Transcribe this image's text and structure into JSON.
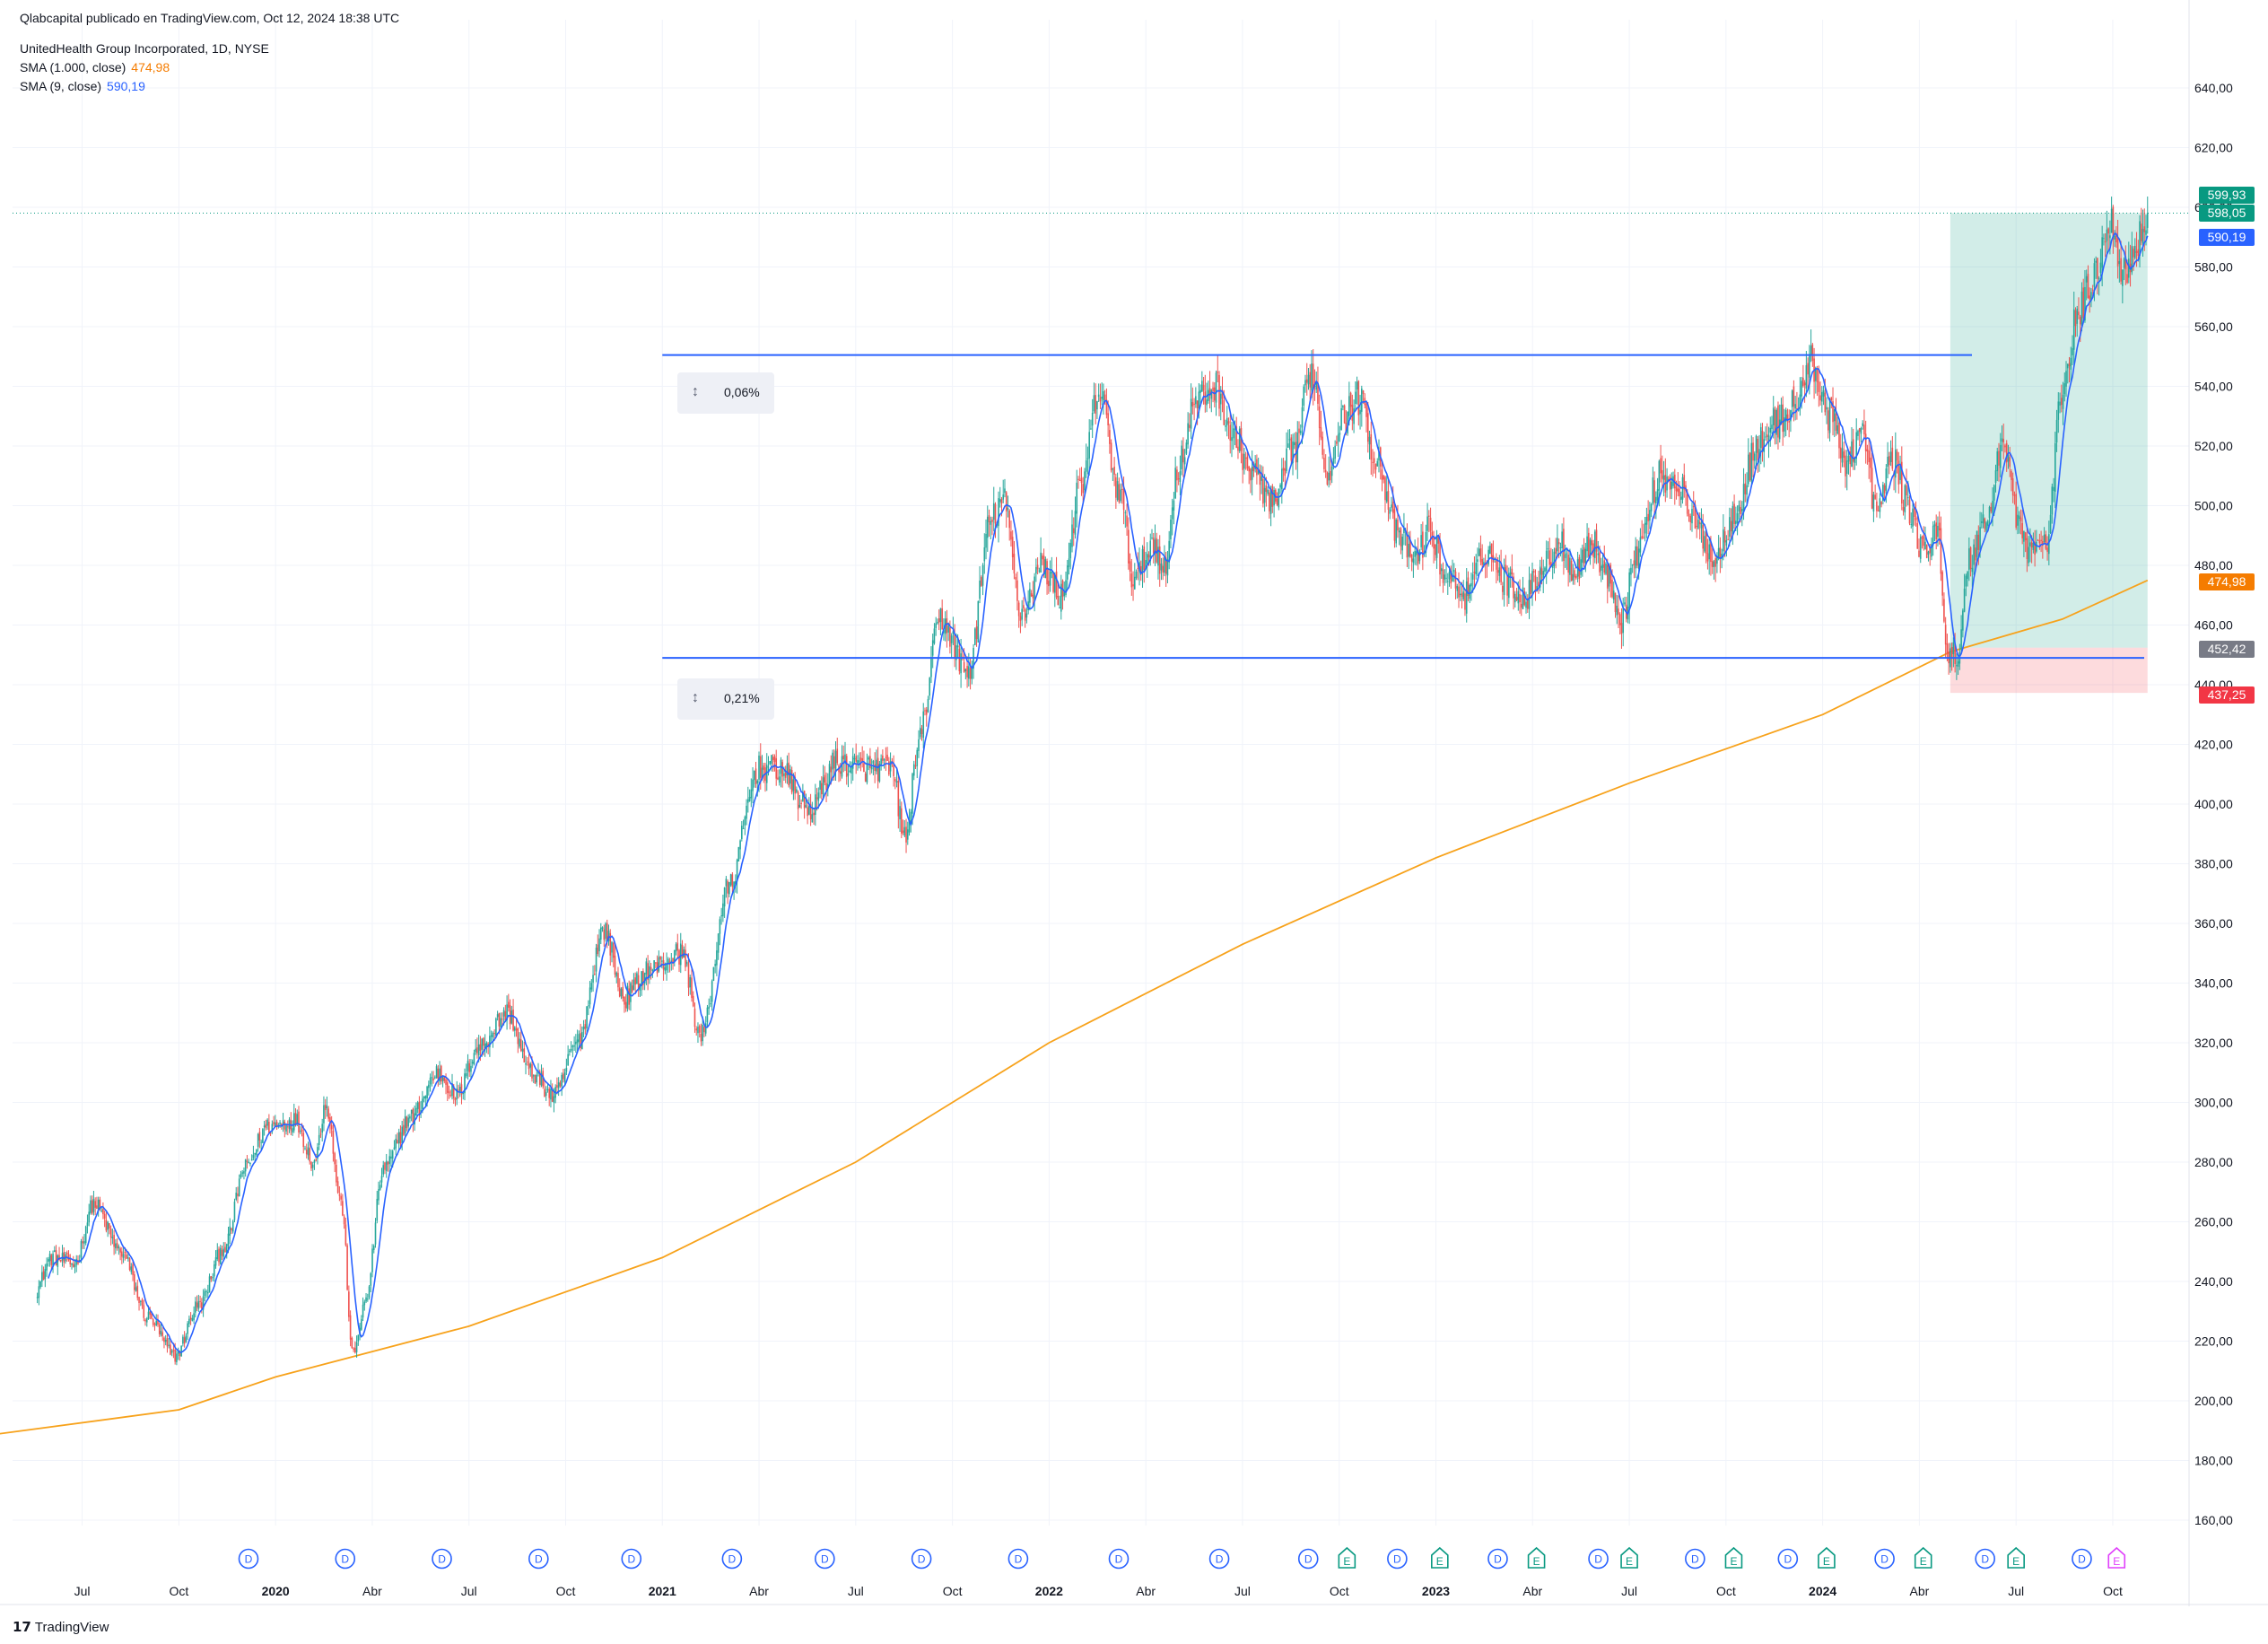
{
  "header": {
    "published": "Qlabcapital publicado en TradingView.com, Oct 12, 2024 18:38 UTC",
    "symbol": "UnitedHealth Group Incorporated, 1D, NYSE",
    "sma_long_label": "SMA (1.000, close)",
    "sma_long_value": "474,98",
    "sma_short_label": "SMA (9, close)",
    "sma_short_value": "590,19"
  },
  "footer": {
    "brand": "TradingView",
    "logo_text": "17"
  },
  "measures": [
    {
      "label": "0,06%"
    },
    {
      "label": "0,21%"
    }
  ],
  "price_tags": [
    {
      "label": "599,93",
      "price": 599.93,
      "color": "#089981"
    },
    {
      "label": "598,05",
      "price": 598.05,
      "color": "#089981"
    },
    {
      "label": "590,19",
      "price": 590.19,
      "color": "#2962ff"
    },
    {
      "label": "474,98",
      "price": 474.98,
      "color": "#f57c00"
    },
    {
      "label": "452,42",
      "price": 452.42,
      "color": "#787b86"
    },
    {
      "label": "437,25",
      "price": 437.25,
      "color": "#f23645"
    }
  ],
  "chart_data": {
    "type": "candlestick",
    "title": "UnitedHealth Group Incorporated, 1D, NYSE",
    "ylim": [
      150,
      650
    ],
    "y_ticks": [
      "640,00",
      "620,00",
      "600,00",
      "580,00",
      "560,00",
      "540,00",
      "520,00",
      "500,00",
      "480,00",
      "460,00",
      "440,00",
      "420,00",
      "400,00",
      "380,00",
      "360,00",
      "340,00",
      "320,00",
      "300,00",
      "280,00",
      "260,00",
      "240,00",
      "220,00",
      "200,00",
      "180,00",
      "160,00"
    ],
    "x_ticks": [
      {
        "label": "Jul",
        "t": 2019.5,
        "bold": false
      },
      {
        "label": "Oct",
        "t": 2019.75,
        "bold": false
      },
      {
        "label": "2020",
        "t": 2020.0,
        "bold": true
      },
      {
        "label": "Abr",
        "t": 2020.25,
        "bold": false
      },
      {
        "label": "Jul",
        "t": 2020.5,
        "bold": false
      },
      {
        "label": "Oct",
        "t": 2020.75,
        "bold": false
      },
      {
        "label": "2021",
        "t": 2021.0,
        "bold": true
      },
      {
        "label": "Abr",
        "t": 2021.25,
        "bold": false
      },
      {
        "label": "Jul",
        "t": 2021.5,
        "bold": false
      },
      {
        "label": "Oct",
        "t": 2021.75,
        "bold": false
      },
      {
        "label": "2022",
        "t": 2022.0,
        "bold": true
      },
      {
        "label": "Abr",
        "t": 2022.25,
        "bold": false
      },
      {
        "label": "Jul",
        "t": 2022.5,
        "bold": false
      },
      {
        "label": "Oct",
        "t": 2022.75,
        "bold": false
      },
      {
        "label": "2023",
        "t": 2023.0,
        "bold": true
      },
      {
        "label": "Abr",
        "t": 2023.25,
        "bold": false
      },
      {
        "label": "Jul",
        "t": 2023.5,
        "bold": false
      },
      {
        "label": "Oct",
        "t": 2023.75,
        "bold": false
      },
      {
        "label": "2024",
        "t": 2024.0,
        "bold": true
      },
      {
        "label": "Abr",
        "t": 2024.25,
        "bold": false
      },
      {
        "label": "Jul",
        "t": 2024.5,
        "bold": false
      },
      {
        "label": "Oct",
        "t": 2024.75,
        "bold": false
      }
    ],
    "price_anchors": [
      [
        2019.38,
        237
      ],
      [
        2019.42,
        248
      ],
      [
        2019.48,
        246
      ],
      [
        2019.53,
        266
      ],
      [
        2019.6,
        250
      ],
      [
        2019.67,
        228
      ],
      [
        2019.74,
        215
      ],
      [
        2019.8,
        232
      ],
      [
        2019.87,
        252
      ],
      [
        2019.92,
        278
      ],
      [
        2019.98,
        292
      ],
      [
        2020.05,
        294
      ],
      [
        2020.1,
        280
      ],
      [
        2020.13,
        300
      ],
      [
        2020.17,
        266
      ],
      [
        2020.2,
        215
      ],
      [
        2020.23,
        232
      ],
      [
        2020.28,
        278
      ],
      [
        2020.35,
        295
      ],
      [
        2020.42,
        310
      ],
      [
        2020.47,
        302
      ],
      [
        2020.52,
        318
      ],
      [
        2020.6,
        330
      ],
      [
        2020.66,
        310
      ],
      [
        2020.72,
        302
      ],
      [
        2020.78,
        320
      ],
      [
        2020.85,
        358
      ],
      [
        2020.9,
        335
      ],
      [
        2020.97,
        345
      ],
      [
        2021.05,
        350
      ],
      [
        2021.1,
        322
      ],
      [
        2021.17,
        372
      ],
      [
        2021.25,
        412
      ],
      [
        2021.3,
        412
      ],
      [
        2021.38,
        398
      ],
      [
        2021.45,
        414
      ],
      [
        2021.52,
        412
      ],
      [
        2021.59,
        412
      ],
      [
        2021.63,
        388
      ],
      [
        2021.66,
        420
      ],
      [
        2021.72,
        462
      ],
      [
        2021.79,
        444
      ],
      [
        2021.85,
        495
      ],
      [
        2021.88,
        502
      ],
      [
        2021.93,
        464
      ],
      [
        2021.98,
        480
      ],
      [
        2022.03,
        470
      ],
      [
        2022.08,
        505
      ],
      [
        2022.13,
        538
      ],
      [
        2022.18,
        505
      ],
      [
        2022.22,
        475
      ],
      [
        2022.27,
        488
      ],
      [
        2022.3,
        478
      ],
      [
        2022.33,
        512
      ],
      [
        2022.38,
        535
      ],
      [
        2022.43,
        540
      ],
      [
        2022.48,
        522
      ],
      [
        2022.53,
        510
      ],
      [
        2022.58,
        500
      ],
      [
        2022.63,
        518
      ],
      [
        2022.68,
        545
      ],
      [
        2022.72,
        510
      ],
      [
        2022.75,
        528
      ],
      [
        2022.8,
        536
      ],
      [
        2022.85,
        515
      ],
      [
        2022.9,
        490
      ],
      [
        2022.95,
        482
      ],
      [
        2022.98,
        492
      ],
      [
        2023.03,
        476
      ],
      [
        2023.08,
        470
      ],
      [
        2023.13,
        485
      ],
      [
        2023.18,
        475
      ],
      [
        2023.23,
        470
      ],
      [
        2023.28,
        480
      ],
      [
        2023.32,
        488
      ],
      [
        2023.36,
        478
      ],
      [
        2023.4,
        488
      ],
      [
        2023.45,
        475
      ],
      [
        2023.48,
        462
      ],
      [
        2023.52,
        485
      ],
      [
        2023.58,
        510
      ],
      [
        2023.62,
        508
      ],
      [
        2023.68,
        492
      ],
      [
        2023.72,
        482
      ],
      [
        2023.78,
        500
      ],
      [
        2023.83,
        520
      ],
      [
        2023.88,
        528
      ],
      [
        2023.93,
        534
      ],
      [
        2023.97,
        548
      ],
      [
        2024.02,
        530
      ],
      [
        2024.06,
        515
      ],
      [
        2024.1,
        525
      ],
      [
        2024.14,
        498
      ],
      [
        2024.18,
        516
      ],
      [
        2024.22,
        500
      ],
      [
        2024.26,
        485
      ],
      [
        2024.3,
        490
      ],
      [
        2024.32,
        452
      ],
      [
        2024.35,
        450
      ],
      [
        2024.38,
        482
      ],
      [
        2024.42,
        495
      ],
      [
        2024.47,
        522
      ],
      [
        2024.5,
        498
      ],
      [
        2024.53,
        485
      ],
      [
        2024.58,
        488
      ],
      [
        2024.62,
        540
      ],
      [
        2024.66,
        564
      ],
      [
        2024.7,
        576
      ],
      [
        2024.74,
        596
      ],
      [
        2024.78,
        578
      ],
      [
        2024.82,
        590
      ],
      [
        2024.84,
        598
      ]
    ],
    "sma1000": [
      [
        2019.0,
        184
      ],
      [
        2019.75,
        197
      ],
      [
        2020.0,
        208
      ],
      [
        2020.5,
        225
      ],
      [
        2021.0,
        248
      ],
      [
        2021.5,
        280
      ],
      [
        2022.0,
        320
      ],
      [
        2022.5,
        353
      ],
      [
        2023.0,
        382
      ],
      [
        2023.5,
        407
      ],
      [
        2024.0,
        430
      ],
      [
        2024.33,
        451
      ],
      [
        2024.62,
        462
      ],
      [
        2024.84,
        474.98
      ]
    ],
    "horizontal_levels": [
      {
        "price": 550.5,
        "t_start": 2021.0,
        "t_end": 2024.62,
        "color": "#2962ff"
      },
      {
        "price": 449.0,
        "t_start": 2021.0,
        "t_end": 2024.62,
        "color": "#2962ff"
      }
    ],
    "position": {
      "t_start": 2024.33,
      "t_end": 2024.84,
      "entry": 452.42,
      "target": 598.05,
      "stop": 437.25
    },
    "events": [
      {
        "type": "D",
        "t": 2019.93
      },
      {
        "type": "D",
        "t": 2020.18
      },
      {
        "type": "D",
        "t": 2020.43
      },
      {
        "type": "D",
        "t": 2020.68
      },
      {
        "type": "D",
        "t": 2020.92
      },
      {
        "type": "D",
        "t": 2021.18
      },
      {
        "type": "D",
        "t": 2021.42
      },
      {
        "type": "D",
        "t": 2021.67
      },
      {
        "type": "D",
        "t": 2021.92
      },
      {
        "type": "D",
        "t": 2022.18
      },
      {
        "type": "D",
        "t": 2022.44
      },
      {
        "type": "D",
        "t": 2022.67
      },
      {
        "type": "E",
        "t": 2022.77
      },
      {
        "type": "D",
        "t": 2022.9
      },
      {
        "type": "E",
        "t": 2023.01
      },
      {
        "type": "D",
        "t": 2023.16
      },
      {
        "type": "E",
        "t": 2023.26
      },
      {
        "type": "D",
        "t": 2023.42
      },
      {
        "type": "E",
        "t": 2023.5
      },
      {
        "type": "D",
        "t": 2023.67
      },
      {
        "type": "E",
        "t": 2023.77
      },
      {
        "type": "D",
        "t": 2023.91
      },
      {
        "type": "E",
        "t": 2024.01
      },
      {
        "type": "D",
        "t": 2024.16
      },
      {
        "type": "E",
        "t": 2024.26
      },
      {
        "type": "D",
        "t": 2024.42
      },
      {
        "type": "E",
        "t": 2024.5
      },
      {
        "type": "D",
        "t": 2024.67
      },
      {
        "type": "E",
        "t": 2024.76
      }
    ],
    "colors": {
      "up": "#26a69a",
      "down": "#ef5350",
      "sma9": "#2962ff",
      "sma1000": "#f7a21b",
      "dividend": "#2962ff",
      "earnings": "#089981",
      "earnings_next": "#e040fb"
    }
  }
}
